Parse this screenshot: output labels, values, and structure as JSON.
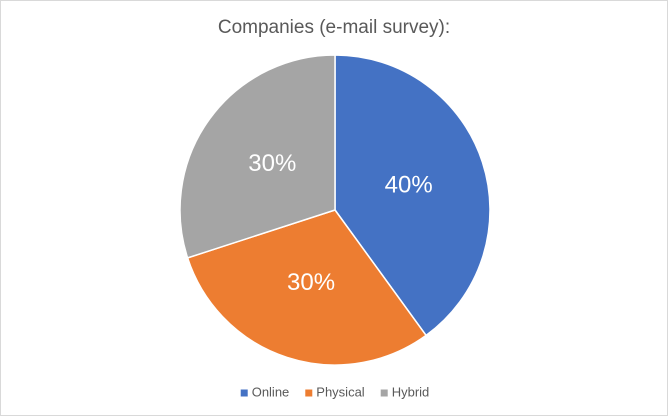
{
  "chart_data": {
    "type": "pie",
    "title": "Companies (e-mail survey):",
    "categories": [
      "Online",
      "Physical",
      "Hybrid"
    ],
    "values": [
      40,
      30,
      30
    ],
    "value_labels": [
      "40%",
      "30%",
      "30%"
    ],
    "colors": [
      "#4472c4",
      "#ed7d31",
      "#a5a5a5"
    ],
    "legend": "bottom"
  }
}
